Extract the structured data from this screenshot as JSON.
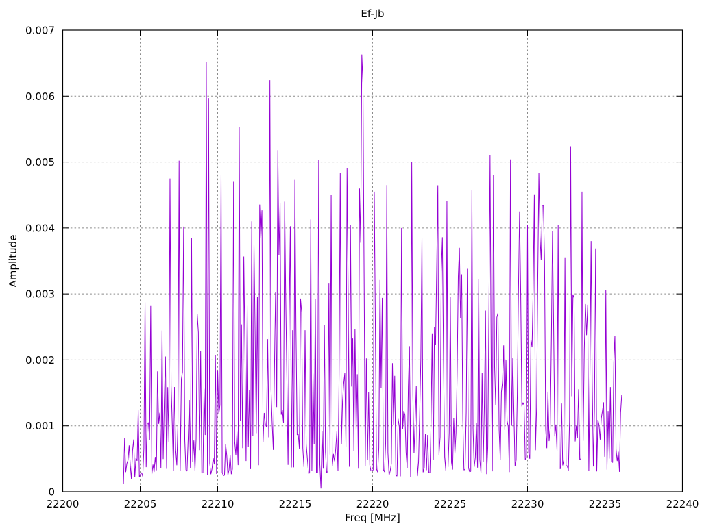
{
  "chart_data": {
    "type": "line",
    "title": "Ef-Jb",
    "xlabel": "Freq [MHz]",
    "ylabel": "Amplitude",
    "xlim": [
      22200,
      22240
    ],
    "ylim": [
      0,
      0.007
    ],
    "x_ticks": {
      "values": [
        22200,
        22205,
        22210,
        22215,
        22220,
        22225,
        22230,
        22235,
        22240
      ],
      "labels": [
        "22200",
        "22205",
        "22210",
        "22215",
        "22220",
        "22225",
        "22230",
        "22235",
        "22240"
      ]
    },
    "y_ticks": {
      "values": [
        0,
        0.001,
        0.002,
        0.003,
        0.004,
        0.005,
        0.006,
        0.007
      ],
      "labels": [
        "0",
        "0.001",
        "0.002",
        "0.003",
        "0.004",
        "0.005",
        "0.006",
        "0.007"
      ]
    },
    "grid": {
      "on": true,
      "color": "#8a8a8a",
      "style": "dashed"
    },
    "legend_position": "none",
    "series_name": "Ef-Jb",
    "line_color": "#9400d3",
    "background_color": "#ffffff",
    "border_color": "#000000",
    "data_x_range": [
      22203.92,
      22236.08
    ],
    "noise": {
      "seed": 1337,
      "samples": 440,
      "base_min": 0.0003,
      "scale": 0.0033,
      "power": 2.2,
      "spike_prob": 0.018,
      "spike_base": 0.0034,
      "spike_extra": 0.0013,
      "edge_in": 1.3,
      "edge_out": 0.9,
      "clamp_min": 8e-05,
      "clamp_max": 0.0058,
      "typical_mean": 0.0017
    },
    "peaks": [
      [
        22206.9,
        0.00475
      ],
      [
        22207.5,
        0.00502
      ],
      [
        22207.8,
        0.00402
      ],
      [
        22208.3,
        0.00385
      ],
      [
        22209.3,
        0.00652
      ],
      [
        22209.45,
        0.00597
      ],
      [
        22210.2,
        0.0048
      ],
      [
        22211.0,
        0.0047
      ],
      [
        22211.4,
        0.00553
      ],
      [
        22212.2,
        0.0041
      ],
      [
        22213.35,
        0.00624
      ],
      [
        22213.9,
        0.00518
      ],
      [
        22214.3,
        0.0044
      ],
      [
        22215.0,
        0.00473
      ],
      [
        22216.0,
        0.00413
      ],
      [
        22216.55,
        0.00503
      ],
      [
        22217.3,
        0.0045
      ],
      [
        22217.9,
        0.00484
      ],
      [
        22218.6,
        0.00405
      ],
      [
        22219.3,
        0.00663
      ],
      [
        22219.4,
        0.0062
      ],
      [
        22220.1,
        0.00455
      ],
      [
        22220.9,
        0.00465
      ],
      [
        22221.9,
        0.004
      ],
      [
        22222.5,
        0.005
      ],
      [
        22223.2,
        0.00385
      ],
      [
        22224.5,
        0.00386
      ],
      [
        22225.6,
        0.0037
      ],
      [
        22226.4,
        0.00457
      ],
      [
        22227.55,
        0.0051
      ],
      [
        22227.8,
        0.0048
      ],
      [
        22228.9,
        0.00504
      ],
      [
        22229.5,
        0.00425
      ],
      [
        22230.7,
        0.00484
      ],
      [
        22231.6,
        0.00395
      ],
      [
        22232.0,
        0.00405
      ],
      [
        22232.8,
        0.00524
      ],
      [
        22233.5,
        0.00455
      ],
      [
        22234.1,
        0.0038
      ]
    ],
    "dips": [
      [
        22216.65,
        5e-05
      ]
    ]
  }
}
